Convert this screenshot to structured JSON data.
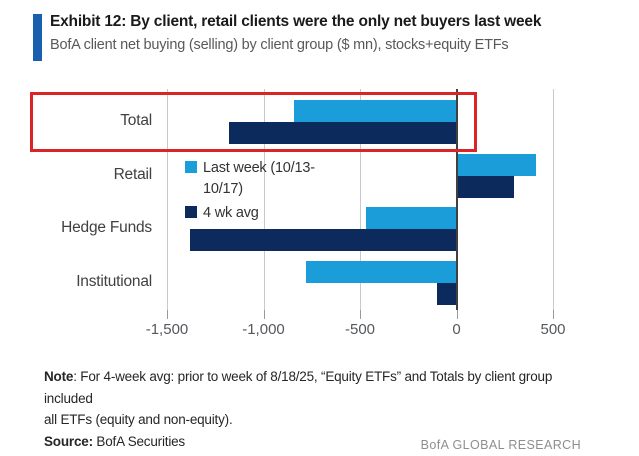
{
  "header": {
    "exhibit_title": "Exhibit 12: By client, retail clients were the only net buyers last week",
    "subtitle": "BofA client net buying (selling) by client group ($ mn), stocks+equity ETFs",
    "accent_color": "#1a5eae"
  },
  "chart_data": {
    "type": "bar",
    "orientation": "horizontal",
    "categories": [
      "Total",
      "Retail",
      "Hedge Funds",
      "Institutional"
    ],
    "series": [
      {
        "name": "Last week (10/13-10/17)",
        "color": "#1b9dd9",
        "values": [
          -840,
          410,
          -470,
          -780
        ]
      },
      {
        "name": "4 wk avg",
        "color": "#0d2a5c",
        "values": [
          -1180,
          300,
          -1380,
          -100
        ]
      }
    ],
    "xlim": [
      -1500,
      500
    ],
    "xticks": [
      -1500,
      -1000,
      -500,
      0,
      500
    ],
    "xtick_labels": [
      "-1,500",
      "-1,000",
      "-500",
      "0",
      "500"
    ],
    "legend_position": "inside-left",
    "grid": "vertical",
    "highlight": "red box around Total row"
  },
  "note": {
    "label": "Note",
    "line1": ": For 4-week avg: prior to week of 8/18/25, “Equity ETFs” and Totals by client group included",
    "line2": "all ETFs (equity and non-equity).",
    "source_label": "Source:",
    "source_text": " BofA Securities"
  },
  "footer": {
    "brand": "BofA GLOBAL RESEARCH"
  },
  "colors": {
    "last_week_blue": "#1b9dd9",
    "avg_navy": "#0d2a5c",
    "highlight_red": "#db2426",
    "gridline_gray": "#c9c9c9",
    "zero_line": "#404040"
  }
}
